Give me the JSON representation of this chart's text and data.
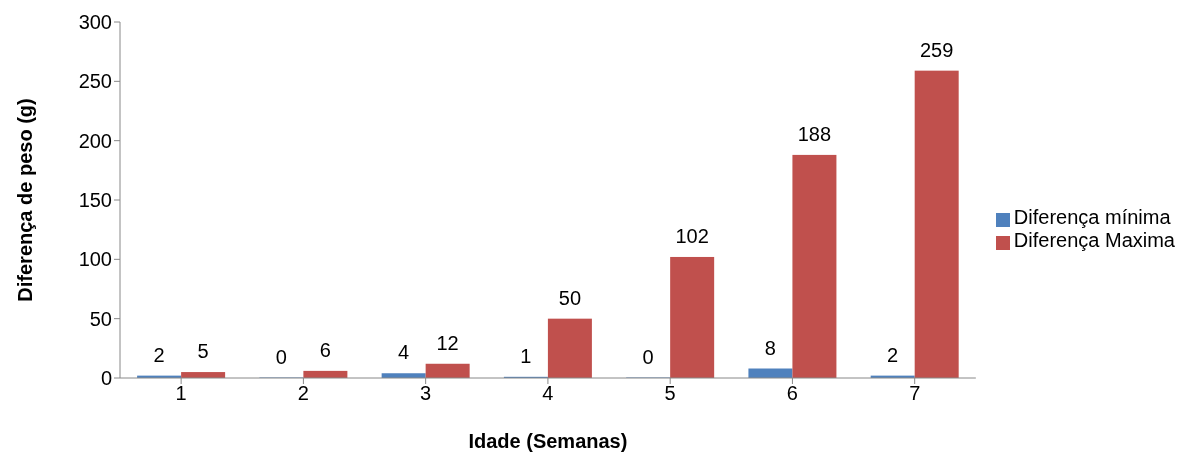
{
  "chart_data": {
    "type": "bar",
    "xlabel": "Idade (Semanas)",
    "ylabel": "Diferença de peso (g)",
    "categories": [
      "1",
      "2",
      "3",
      "4",
      "5",
      "6",
      "7"
    ],
    "series": [
      {
        "name": "Diferença mínima",
        "color": "#4f81bd",
        "values": [
          2,
          0,
          4,
          1,
          0,
          8,
          2
        ]
      },
      {
        "name": "Diferença Maxima",
        "color": "#c0504d",
        "values": [
          5,
          6,
          12,
          50,
          102,
          188,
          259
        ]
      }
    ],
    "ylim": [
      0,
      300
    ],
    "yticks": [
      0,
      50,
      100,
      150,
      200,
      250,
      300
    ],
    "grid": false,
    "legend": "right",
    "data_labels": true
  }
}
